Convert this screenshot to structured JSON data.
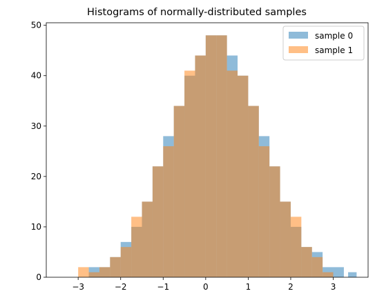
{
  "chart_data": {
    "type": "bar",
    "title": "Histograms of normally-distributed samples",
    "xlabel": "",
    "ylabel": "",
    "xlim": [
      -3.75,
      3.82
    ],
    "ylim": [
      0,
      50.5
    ],
    "xticks": [
      -3,
      -2,
      -1,
      0,
      1,
      2,
      3
    ],
    "xtick_labels": [
      "−3",
      "−2",
      "−1",
      "0",
      "1",
      "2",
      "3"
    ],
    "yticks": [
      0,
      10,
      20,
      30,
      40,
      50
    ],
    "ytick_labels": [
      "0",
      "10",
      "20",
      "30",
      "40",
      "50"
    ],
    "grid": false,
    "legend_position": "top-right",
    "bar_opacity": 0.5,
    "bin_edges": [
      -3.0,
      -2.75,
      -2.5,
      -2.25,
      -2.0,
      -1.75,
      -1.5,
      -1.25,
      -1.0,
      -0.75,
      -0.5,
      -0.25,
      0.0,
      0.25,
      0.5,
      0.75,
      1.0,
      1.25,
      1.5,
      1.75,
      2.0,
      2.25,
      2.5,
      2.75,
      3.0,
      3.25,
      3.5
    ],
    "series": [
      {
        "name": "sample 0",
        "color": "#1f77b4",
        "bin_edges": [
          -2.75,
          -2.5,
          -2.25,
          -2.0,
          -1.75,
          -1.5,
          -1.25,
          -1.0,
          -0.75,
          -0.5,
          -0.25,
          0.0,
          0.25,
          0.5,
          0.75,
          1.0,
          1.25,
          1.5,
          1.75,
          2.0,
          2.25,
          2.5,
          2.75,
          3.0,
          3.25,
          3.5
        ],
        "values": [
          2,
          2,
          4,
          7,
          10,
          15,
          22,
          28,
          34,
          40,
          44,
          48,
          48,
          44,
          40,
          34,
          28,
          22,
          15,
          10,
          6,
          5,
          2,
          2,
          0
        ]
      },
      {
        "name": "sample 1",
        "color": "#ff7f0e",
        "bin_edges": [
          -3.0,
          -2.75,
          -2.5,
          -2.25,
          -2.0,
          -1.75,
          -1.5,
          -1.25,
          -1.0,
          -0.75,
          -0.5,
          -0.25,
          0.0,
          0.25,
          0.5,
          0.75,
          1.0,
          1.25,
          1.5,
          1.75,
          2.0,
          2.25,
          2.5,
          2.75,
          3.0
        ],
        "values": [
          2,
          1,
          2,
          4,
          6,
          12,
          15,
          22,
          26,
          34,
          41,
          44,
          48,
          48,
          41,
          40,
          34,
          26,
          22,
          15,
          12,
          6,
          4,
          1,
          2
        ]
      }
    ],
    "extra_bars": [
      {
        "series": 0,
        "x0": 3.35,
        "x1": 3.55,
        "value": 1
      }
    ]
  }
}
